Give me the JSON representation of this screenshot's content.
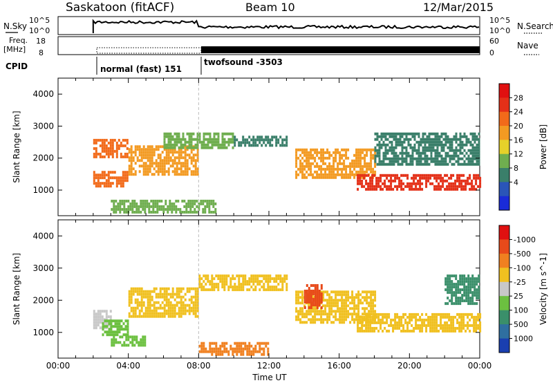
{
  "header": {
    "title": "Saskatoon (fitACF)",
    "beam": "Beam 10",
    "date": "12/Mar/2015"
  },
  "panels": {
    "nsky": {
      "left_label": "N.Sky",
      "right_label": "N.Search",
      "left_ticks": [
        "10^5",
        "10^0"
      ],
      "right_ticks": [
        "10^5",
        "10^0"
      ]
    },
    "freq": {
      "left_label_1": "Freq.",
      "left_label_2": "[MHz]",
      "right_label": "Nave",
      "left_ticks": [
        "18",
        "8"
      ],
      "right_ticks": [
        "60",
        "0"
      ]
    },
    "cpid": {
      "label": "CPID",
      "mode1": "normal (fast) 151",
      "mode2": "twofsound -3503"
    }
  },
  "chart_data": [
    {
      "type": "heatmap",
      "title": "",
      "xlabel": "Time UT",
      "ylabel": "Slant Range [km]",
      "x_ticks": [
        "00:00",
        "04:00",
        "08:00",
        "12:00",
        "16:00",
        "20:00",
        "00:00"
      ],
      "y_ticks": [
        1000,
        2000,
        3000,
        4000
      ],
      "xlim_hours": [
        0,
        24
      ],
      "ylim": [
        200,
        4500
      ],
      "colorbar": {
        "label": "Power [dB]",
        "ticks": [
          4,
          8,
          12,
          16,
          20,
          24,
          28
        ],
        "colors": [
          "#1a2bd8",
          "#2a55b8",
          "#3a7f6a",
          "#6fae4f",
          "#e6d12a",
          "#f39a22",
          "#f26a1a",
          "#e43018",
          "#e01010"
        ]
      },
      "bands": [
        {
          "t": [
            2.0,
            4.0
          ],
          "range": [
            2000,
            2600
          ],
          "level": 24
        },
        {
          "t": [
            2.0,
            4.0
          ],
          "range": [
            1100,
            1600
          ],
          "level": 24
        },
        {
          "t": [
            4.0,
            8.0
          ],
          "range": [
            1500,
            2400
          ],
          "level": 20
        },
        {
          "t": [
            6.0,
            10.0
          ],
          "range": [
            2300,
            2800
          ],
          "level": 12
        },
        {
          "t": [
            10.0,
            13.0
          ],
          "range": [
            2400,
            2700
          ],
          "level": 8
        },
        {
          "t": [
            13.5,
            18.0
          ],
          "range": [
            1400,
            2300
          ],
          "level": 20
        },
        {
          "t": [
            17.0,
            24.0
          ],
          "range": [
            1000,
            1500
          ],
          "level": 28
        },
        {
          "t": [
            18.0,
            24.0
          ],
          "range": [
            1800,
            2800
          ],
          "level": 8
        },
        {
          "t": [
            3.0,
            9.0
          ],
          "range": [
            300,
            700
          ],
          "level": 12
        }
      ]
    },
    {
      "type": "heatmap",
      "title": "",
      "xlabel": "Time UT",
      "ylabel": "Slant Range [km]",
      "x_ticks": [
        "00:00",
        "04:00",
        "08:00",
        "12:00",
        "16:00",
        "20:00",
        "00:00"
      ],
      "y_ticks": [
        1000,
        2000,
        3000,
        4000
      ],
      "xlim_hours": [
        0,
        24
      ],
      "ylim": [
        200,
        4500
      ],
      "colorbar": {
        "label": "Velocity [m s^-1]",
        "ticks": [
          "1000",
          "500",
          "100",
          "25",
          "-25",
          "-100",
          "-500",
          "-1000"
        ],
        "colors": [
          "#1a3fb0",
          "#2f6fa0",
          "#3a8f6a",
          "#6cc040",
          "#c8c8c8",
          "#f0c020",
          "#f08020",
          "#e84a1a",
          "#e01010"
        ]
      },
      "bands": [
        {
          "t": [
            2.0,
            3.0
          ],
          "range": [
            1100,
            1700
          ],
          "level": "25"
        },
        {
          "t": [
            2.5,
            4.0
          ],
          "range": [
            900,
            1400
          ],
          "level": "100"
        },
        {
          "t": [
            3.0,
            5.0
          ],
          "range": [
            600,
            900
          ],
          "level": "100"
        },
        {
          "t": [
            4.0,
            8.0
          ],
          "range": [
            1500,
            2400
          ],
          "level": "-25"
        },
        {
          "t": [
            8.0,
            13.0
          ],
          "range": [
            2300,
            2800
          ],
          "level": "-25"
        },
        {
          "t": [
            13.5,
            18.0
          ],
          "range": [
            1300,
            2300
          ],
          "level": "-25"
        },
        {
          "t": [
            17.0,
            24.0
          ],
          "range": [
            1000,
            1600
          ],
          "level": "-25"
        },
        {
          "t": [
            8.0,
            12.0
          ],
          "range": [
            300,
            700
          ],
          "level": "-100"
        },
        {
          "t": [
            14.0,
            15.0
          ],
          "range": [
            1800,
            2500
          ],
          "level": "-500"
        },
        {
          "t": [
            22.0,
            24.0
          ],
          "range": [
            1900,
            2800
          ],
          "level": "500"
        }
      ]
    }
  ]
}
